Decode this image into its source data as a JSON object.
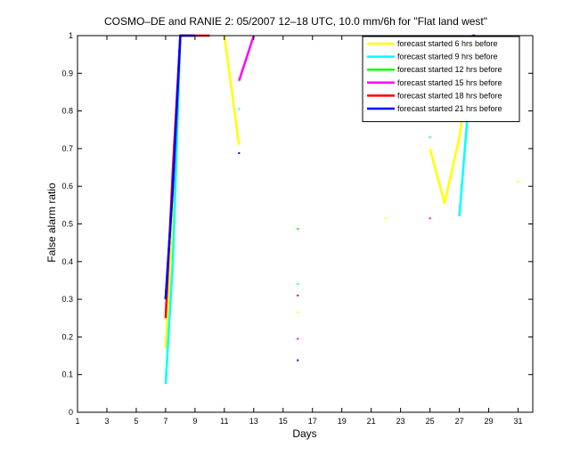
{
  "chart_data": {
    "type": "line",
    "title": "COSMO–DE and RANIE 2: 05/2007 12–18 UTC, 10.0 mm/6h for \"Flat land west\"",
    "xlabel": "Days",
    "ylabel": "False alarm ratio",
    "xlim": [
      1,
      32
    ],
    "ylim": [
      0,
      1
    ],
    "xticks": [
      1,
      3,
      5,
      7,
      9,
      11,
      13,
      15,
      17,
      19,
      21,
      23,
      25,
      27,
      29,
      31
    ],
    "yticks": [
      0,
      0.1,
      0.2,
      0.3,
      0.4,
      0.5,
      0.6,
      0.7,
      0.8,
      0.9,
      1
    ],
    "ytick_labels": [
      "0",
      "0.1",
      "0.2",
      "0.3",
      "0.4",
      "0.5",
      "0.6",
      "0.7",
      "0.8",
      "0.9",
      "1"
    ],
    "legend_position": "top-right",
    "grid": false,
    "series": [
      {
        "name": "forecast started 6 hrs before",
        "color": "#ffff00",
        "values": [
          [
            7,
            0.17
          ],
          [
            7.5,
            0.5
          ],
          [
            8,
            1.0
          ],
          [
            null,
            null
          ],
          [
            11,
            1.0
          ],
          [
            12,
            0.71
          ],
          [
            null,
            null
          ],
          [
            16,
            0.265
          ],
          [
            null,
            null
          ],
          [
            22,
            0.515
          ],
          [
            null,
            null
          ],
          [
            25,
            0.7
          ],
          [
            26,
            0.555
          ],
          [
            27,
            0.73
          ],
          [
            28,
            1.0
          ],
          [
            29,
            0.91
          ],
          [
            null,
            null
          ],
          [
            31,
            0.613
          ]
        ]
      },
      {
        "name": "forecast started 9 hrs before",
        "color": "#00ffff",
        "values": [
          [
            7,
            0.075
          ],
          [
            7.5,
            0.4
          ],
          [
            8,
            1.0
          ],
          [
            null,
            null
          ],
          [
            12,
            0.805
          ],
          [
            null,
            null
          ],
          [
            16,
            0.34
          ],
          [
            null,
            null
          ],
          [
            25,
            0.73
          ],
          [
            null,
            null
          ],
          [
            25,
            0.87
          ],
          [
            null,
            null
          ],
          [
            27,
            0.52
          ],
          [
            28,
            1.0
          ],
          [
            29,
            0.96
          ]
        ]
      },
      {
        "name": "forecast started 12 hrs before",
        "color": "#00ff00",
        "values": [
          [
            7,
            0.3
          ],
          [
            7.5,
            0.6
          ],
          [
            8,
            1.0
          ],
          [
            null,
            null
          ],
          [
            16,
            0.487
          ],
          [
            null,
            null
          ],
          [
            27,
            0.9
          ],
          [
            28,
            1.0
          ],
          [
            29,
            0.97
          ]
        ]
      },
      {
        "name": "forecast started 15 hrs before",
        "color": "#ff00ff",
        "values": [
          [
            7,
            0.3
          ],
          [
            7.5,
            0.6
          ],
          [
            8,
            1.0
          ],
          [
            null,
            null
          ],
          [
            12,
            0.88
          ],
          [
            13,
            1.0
          ],
          [
            null,
            null
          ],
          [
            16,
            0.195
          ],
          [
            null,
            null
          ],
          [
            25,
            0.515
          ],
          [
            null,
            null
          ],
          [
            27,
            0.94
          ],
          [
            28,
            1.0
          ],
          [
            29,
            0.96
          ]
        ]
      },
      {
        "name": "forecast started 18 hrs before",
        "color": "#ff0000",
        "values": [
          [
            7,
            0.25
          ],
          [
            7.5,
            0.65
          ],
          [
            8,
            1.0
          ],
          [
            9,
            1.0
          ],
          [
            10,
            1.0
          ],
          [
            null,
            null
          ],
          [
            16,
            0.31
          ],
          [
            null,
            null
          ],
          [
            25,
            0.9
          ],
          [
            null,
            null
          ],
          [
            27,
            0.9
          ],
          [
            28,
            1.0
          ],
          [
            29,
            0.95
          ]
        ]
      },
      {
        "name": "forecast started 21 hrs before",
        "color": "#0000ff",
        "values": [
          [
            7,
            0.3
          ],
          [
            7.5,
            0.6
          ],
          [
            8,
            1.0
          ],
          [
            9,
            1.0
          ],
          [
            null,
            null
          ],
          [
            12,
            0.688
          ],
          [
            null,
            null
          ],
          [
            16,
            0.138
          ],
          [
            null,
            null
          ],
          [
            25,
            0.88
          ],
          [
            26,
            0.99
          ],
          [
            27,
            0.99
          ],
          [
            28,
            1.0
          ],
          [
            29,
            0.96
          ]
        ]
      }
    ]
  }
}
